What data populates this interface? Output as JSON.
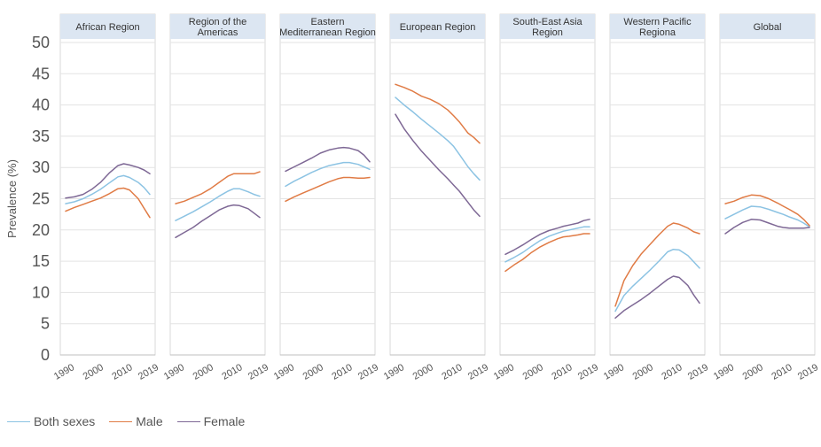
{
  "chart_data": {
    "type": "line",
    "ylabel": "Prevalence (%)",
    "ylim": [
      0,
      50
    ],
    "yticks": [
      0,
      5,
      10,
      15,
      20,
      25,
      30,
      35,
      40,
      45,
      50
    ],
    "xlim": [
      1990,
      2019
    ],
    "xticks": [
      1990,
      2000,
      2010,
      2019
    ],
    "grid": true,
    "legend_position": "bottom-left",
    "colors": {
      "Both sexes": "#8cc3e3",
      "Male": "#e07b45",
      "Female": "#7e6895"
    },
    "panels": [
      {
        "title": "African Region",
        "series": [
          {
            "name": "Both sexes",
            "x": [
              1990,
              1993,
              1996,
              1999,
              2002,
              2005,
              2008,
              2010,
              2012,
              2015,
              2017,
              2019
            ],
            "values": [
              24.2,
              24.5,
              25.0,
              25.7,
              26.5,
              27.5,
              28.5,
              28.7,
              28.4,
              27.6,
              26.8,
              25.7
            ]
          },
          {
            "name": "Male",
            "x": [
              1990,
              1993,
              1996,
              1999,
              2002,
              2005,
              2008,
              2010,
              2012,
              2015,
              2017,
              2019
            ],
            "values": [
              23.0,
              23.6,
              24.1,
              24.6,
              25.1,
              25.8,
              26.6,
              26.7,
              26.4,
              25.0,
              23.5,
              22.0
            ]
          },
          {
            "name": "Female",
            "x": [
              1990,
              1993,
              1996,
              1999,
              2002,
              2005,
              2008,
              2010,
              2012,
              2015,
              2017,
              2019
            ],
            "values": [
              25.1,
              25.3,
              25.7,
              26.5,
              27.6,
              29.1,
              30.3,
              30.6,
              30.4,
              30.0,
              29.6,
              29.0
            ]
          }
        ]
      },
      {
        "title": "Region of the Americas",
        "series": [
          {
            "name": "Both sexes",
            "x": [
              1990,
              1993,
              1996,
              1999,
              2002,
              2005,
              2008,
              2010,
              2012,
              2015,
              2017,
              2019
            ],
            "values": [
              21.5,
              22.2,
              22.9,
              23.7,
              24.5,
              25.4,
              26.2,
              26.6,
              26.6,
              26.1,
              25.7,
              25.4
            ]
          },
          {
            "name": "Male",
            "x": [
              1990,
              1993,
              1996,
              1999,
              2002,
              2005,
              2008,
              2010,
              2012,
              2015,
              2017,
              2019
            ],
            "values": [
              24.2,
              24.6,
              25.2,
              25.8,
              26.6,
              27.6,
              28.6,
              29.0,
              29.0,
              29.0,
              29.0,
              29.3
            ]
          },
          {
            "name": "Female",
            "x": [
              1990,
              1993,
              1996,
              1999,
              2002,
              2005,
              2008,
              2010,
              2012,
              2015,
              2017,
              2019
            ],
            "values": [
              18.8,
              19.6,
              20.4,
              21.4,
              22.3,
              23.2,
              23.8,
              24.0,
              23.9,
              23.4,
              22.7,
              22.0
            ]
          }
        ]
      },
      {
        "title": "Eastern Mediterranean Region",
        "series": [
          {
            "name": "Both sexes",
            "x": [
              1990,
              1993,
              1996,
              1999,
              2002,
              2005,
              2008,
              2010,
              2012,
              2015,
              2017,
              2019
            ],
            "values": [
              27.0,
              27.8,
              28.5,
              29.2,
              29.8,
              30.3,
              30.6,
              30.8,
              30.8,
              30.5,
              30.1,
              29.7
            ]
          },
          {
            "name": "Male",
            "x": [
              1990,
              1993,
              1996,
              1999,
              2002,
              2005,
              2008,
              2010,
              2012,
              2015,
              2017,
              2019
            ],
            "values": [
              24.6,
              25.3,
              25.9,
              26.5,
              27.1,
              27.7,
              28.2,
              28.4,
              28.4,
              28.3,
              28.3,
              28.4
            ]
          },
          {
            "name": "Female",
            "x": [
              1990,
              1993,
              1996,
              1999,
              2002,
              2005,
              2008,
              2010,
              2012,
              2015,
              2017,
              2019
            ],
            "values": [
              29.4,
              30.1,
              30.8,
              31.5,
              32.3,
              32.8,
              33.1,
              33.2,
              33.1,
              32.7,
              32.0,
              30.9
            ]
          }
        ]
      },
      {
        "title": "European Region",
        "series": [
          {
            "name": "Both sexes",
            "x": [
              1990,
              1993,
              1996,
              1999,
              2002,
              2005,
              2008,
              2010,
              2012,
              2015,
              2017,
              2019
            ],
            "values": [
              41.2,
              40.0,
              38.9,
              37.7,
              36.6,
              35.5,
              34.3,
              33.4,
              32.1,
              30.1,
              29.0,
              28.0
            ]
          },
          {
            "name": "Male",
            "x": [
              1990,
              1993,
              1996,
              1999,
              2002,
              2005,
              2008,
              2010,
              2012,
              2015,
              2017,
              2019
            ],
            "values": [
              43.3,
              42.8,
              42.2,
              41.4,
              40.9,
              40.2,
              39.2,
              38.3,
              37.3,
              35.5,
              34.8,
              33.9
            ]
          },
          {
            "name": "Female",
            "x": [
              1990,
              1993,
              1996,
              1999,
              2002,
              2005,
              2008,
              2010,
              2012,
              2015,
              2017,
              2019
            ],
            "values": [
              38.5,
              36.2,
              34.3,
              32.6,
              31.1,
              29.6,
              28.2,
              27.2,
              26.2,
              24.4,
              23.2,
              22.2
            ]
          }
        ]
      },
      {
        "title": "South-East Asia Region",
        "series": [
          {
            "name": "Both sexes",
            "x": [
              1990,
              1993,
              1996,
              1999,
              2002,
              2005,
              2008,
              2010,
              2012,
              2015,
              2017,
              2019
            ],
            "values": [
              14.9,
              15.6,
              16.4,
              17.4,
              18.3,
              19.0,
              19.5,
              19.8,
              20.0,
              20.3,
              20.5,
              20.5
            ]
          },
          {
            "name": "Male",
            "x": [
              1990,
              1993,
              1996,
              1999,
              2002,
              2005,
              2008,
              2010,
              2012,
              2015,
              2017,
              2019
            ],
            "values": [
              13.4,
              14.4,
              15.3,
              16.4,
              17.3,
              18.0,
              18.6,
              18.9,
              19.0,
              19.2,
              19.4,
              19.4
            ]
          },
          {
            "name": "Female",
            "x": [
              1990,
              1993,
              1996,
              1999,
              2002,
              2005,
              2008,
              2010,
              2012,
              2015,
              2017,
              2019
            ],
            "values": [
              16.1,
              16.8,
              17.6,
              18.5,
              19.3,
              19.9,
              20.3,
              20.6,
              20.8,
              21.1,
              21.5,
              21.7
            ]
          }
        ]
      },
      {
        "title": "Western Pacific Regiona",
        "series": [
          {
            "name": "Both sexes",
            "x": [
              1990,
              1993,
              1996,
              1999,
              2002,
              2005,
              2008,
              2010,
              2012,
              2015,
              2017,
              2019
            ],
            "values": [
              7.0,
              9.5,
              11.0,
              12.3,
              13.6,
              15.0,
              16.5,
              16.9,
              16.8,
              15.9,
              14.9,
              13.9
            ]
          },
          {
            "name": "Male",
            "x": [
              1990,
              1993,
              1996,
              1999,
              2002,
              2005,
              2008,
              2010,
              2012,
              2015,
              2017,
              2019
            ],
            "values": [
              7.8,
              11.9,
              14.3,
              16.2,
              17.7,
              19.2,
              20.6,
              21.1,
              20.9,
              20.3,
              19.7,
              19.4
            ]
          },
          {
            "name": "Female",
            "x": [
              1990,
              1993,
              1996,
              1999,
              2002,
              2005,
              2008,
              2010,
              2012,
              2015,
              2017,
              2019
            ],
            "values": [
              5.9,
              7.1,
              8.0,
              8.9,
              9.9,
              11.0,
              12.1,
              12.6,
              12.4,
              11.1,
              9.6,
              8.3
            ]
          }
        ]
      },
      {
        "title": "Global",
        "series": [
          {
            "name": "Both sexes",
            "x": [
              1990,
              1993,
              1996,
              1999,
              2002,
              2005,
              2008,
              2010,
              2012,
              2015,
              2017,
              2019
            ],
            "values": [
              21.8,
              22.5,
              23.2,
              23.8,
              23.7,
              23.3,
              22.8,
              22.5,
              22.1,
              21.6,
              21.1,
              20.5
            ]
          },
          {
            "name": "Male",
            "x": [
              1990,
              1993,
              1996,
              1999,
              2002,
              2005,
              2008,
              2010,
              2012,
              2015,
              2017,
              2019
            ],
            "values": [
              24.2,
              24.6,
              25.2,
              25.6,
              25.5,
              25.0,
              24.3,
              23.8,
              23.3,
              22.5,
              21.7,
              20.7
            ]
          },
          {
            "name": "Female",
            "x": [
              1990,
              1993,
              1996,
              1999,
              2002,
              2005,
              2008,
              2010,
              2012,
              2015,
              2017,
              2019
            ],
            "values": [
              19.4,
              20.4,
              21.2,
              21.7,
              21.6,
              21.1,
              20.6,
              20.4,
              20.3,
              20.3,
              20.3,
              20.4
            ]
          }
        ]
      }
    ]
  },
  "legend": {
    "items": [
      {
        "label": "Both sexes",
        "color": "#8cc3e3"
      },
      {
        "label": "Male",
        "color": "#e07b45"
      },
      {
        "label": "Female",
        "color": "#7e6895"
      }
    ]
  }
}
